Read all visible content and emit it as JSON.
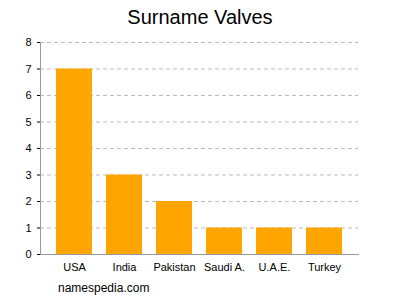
{
  "chart_data": {
    "type": "bar",
    "title": "Surname Valves",
    "caption": "namespedia.com",
    "categories": [
      "USA",
      "India",
      "Pakistan",
      "Saudi A.",
      "U.A.E.",
      "Turkey"
    ],
    "values": [
      7,
      3,
      2,
      1,
      1,
      1
    ],
    "color": "#ffa500",
    "ylim": [
      0,
      8
    ],
    "yticks": [
      0,
      1,
      2,
      3,
      4,
      5,
      6,
      7,
      8
    ],
    "grid": true
  }
}
